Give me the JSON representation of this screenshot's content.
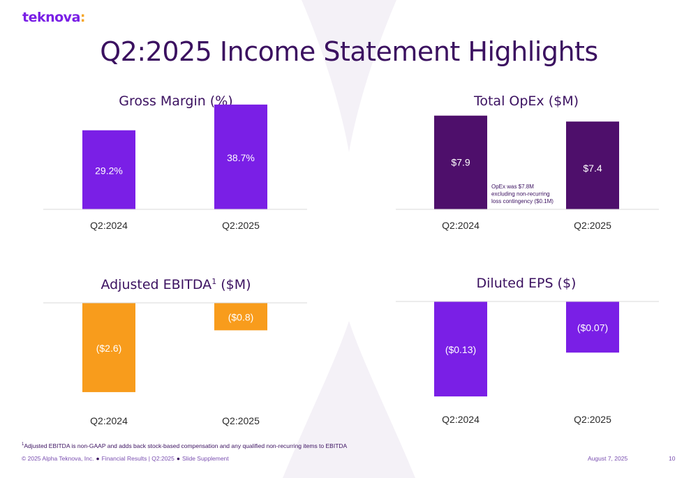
{
  "brand": {
    "name": "teknova",
    "suffix": ":"
  },
  "title": "Q2:2025 Income Statement Highlights",
  "colors": {
    "title": "#3b1160",
    "purple": "#7a1fe6",
    "dark_purple": "#4e0f6b",
    "orange": "#f89c1c",
    "axis": "#d9d9d9",
    "background_shape": "#f4f1f7"
  },
  "chart_data": [
    {
      "type": "bar",
      "title": "Gross Margin (%)",
      "title_sup": "",
      "title_tail": "",
      "categories": [
        "Q2:2024",
        "Q2:2025"
      ],
      "values": [
        29.2,
        38.7
      ],
      "labels": [
        "29.2%",
        "38.7%"
      ],
      "color": "#7a1fe6",
      "annotation": []
    },
    {
      "type": "bar",
      "title": "Total OpEx ($M)",
      "title_sup": "",
      "title_tail": "",
      "categories": [
        "Q2:2024",
        "Q2:2025"
      ],
      "values": [
        7.9,
        7.4
      ],
      "labels": [
        "$7.9",
        "$7.4"
      ],
      "color": "#4e0f6b",
      "annotation": [
        "OpEx was $7.8M",
        "excluding non-recurring",
        "loss contingency ($0.1M)"
      ]
    },
    {
      "type": "bar",
      "title": "Adjusted EBITDA",
      "title_sup": "1",
      "title_tail": " ($M)",
      "categories": [
        "Q2:2024",
        "Q2:2025"
      ],
      "values": [
        -2.6,
        -0.8
      ],
      "labels": [
        "($2.6)",
        "($0.8)"
      ],
      "color": "#f89c1c",
      "annotation": []
    },
    {
      "type": "bar",
      "title": "Diluted EPS ($)",
      "title_sup": "",
      "title_tail": "",
      "categories": [
        "Q2:2024",
        "Q2:2025"
      ],
      "values": [
        -0.13,
        -0.07
      ],
      "labels": [
        "($0.13)",
        "($0.07)"
      ],
      "color": "#7a1fe6",
      "annotation": []
    }
  ],
  "footnote": {
    "marker": "1",
    "text": "Adjusted EBITDA is non-GAAP and adds back stock-based compensation and any qualified non-recurring items to EBITDA"
  },
  "footer": {
    "copyright": "© 2025 Alpha Teknova, Inc.",
    "section": "Financial Results | Q2:2025",
    "supplement": "Slide Supplement",
    "date": "August 7, 2025",
    "page": "10"
  }
}
